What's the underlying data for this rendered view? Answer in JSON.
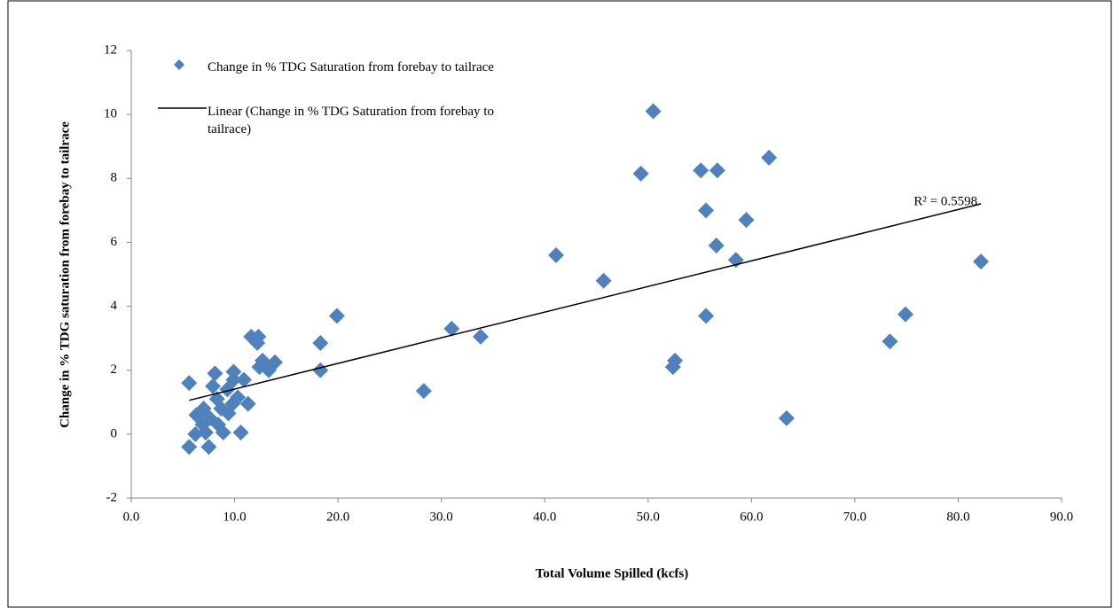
{
  "chart_data": {
    "type": "scatter",
    "xlabel": "Total Volume Spilled (kcfs)",
    "ylabel": "Change in % TDG saturation from forebay to tailrace",
    "annotation": "R² = 0.5598",
    "trendline": true,
    "series": [
      {
        "name": "Change in % TDG Saturation from forebay to tailrace",
        "color": "#4f81bd",
        "x": [
          5.6,
          5.6,
          7.5,
          6.3,
          7.0,
          6.2,
          6.9,
          7.2,
          7.6,
          7.9,
          8.1,
          8.3,
          8.4,
          8.7,
          8.9,
          9.3,
          9.4,
          9.8,
          9.9,
          9.9,
          10.3,
          10.6,
          10.9,
          11.3,
          11.6,
          12.2,
          12.3,
          12.4,
          12.7,
          13.3,
          13.9,
          18.3,
          18.3,
          19.9,
          28.3,
          31.0,
          33.8,
          41.1,
          45.7,
          49.3,
          50.5,
          52.4,
          52.6,
          55.1,
          55.6,
          55.6,
          56.6,
          56.7,
          58.5,
          59.5,
          61.7,
          63.4,
          73.4,
          74.9,
          82.2
        ],
        "values": [
          1.6,
          -0.4,
          -0.4,
          0.6,
          0.8,
          0.0,
          0.3,
          0.05,
          0.5,
          1.5,
          1.9,
          1.1,
          0.3,
          0.8,
          0.05,
          1.4,
          0.65,
          0.95,
          1.95,
          1.7,
          1.15,
          0.05,
          1.7,
          0.95,
          3.05,
          2.85,
          3.05,
          2.1,
          2.3,
          2.0,
          2.25,
          2.0,
          2.85,
          3.7,
          1.35,
          3.3,
          3.05,
          5.6,
          4.8,
          8.15,
          10.1,
          2.1,
          2.3,
          8.25,
          7.0,
          3.7,
          5.9,
          8.25,
          5.45,
          6.7,
          8.65,
          0.5,
          2.9,
          3.75,
          5.4
        ]
      }
    ],
    "trendline_name": "Linear (Change in % TDG Saturation from forebay to tailrace)",
    "trendline_color": "#000000",
    "xlim": [
      0,
      90
    ],
    "xticks": [
      {
        "value": 0,
        "label": "0.0"
      },
      {
        "value": 10,
        "label": "10.0"
      },
      {
        "value": 20,
        "label": "20.0"
      },
      {
        "value": 30,
        "label": "30.0"
      },
      {
        "value": 40,
        "label": "40.0"
      },
      {
        "value": 50,
        "label": "50.0"
      },
      {
        "value": 60,
        "label": "60.0"
      },
      {
        "value": 70,
        "label": "70.0"
      },
      {
        "value": 80,
        "label": "80.0"
      },
      {
        "value": 90,
        "label": "90.0"
      }
    ],
    "ylim": [
      -2,
      12
    ],
    "yticks": [
      -2,
      0,
      2,
      4,
      6,
      8,
      10,
      12
    ]
  }
}
